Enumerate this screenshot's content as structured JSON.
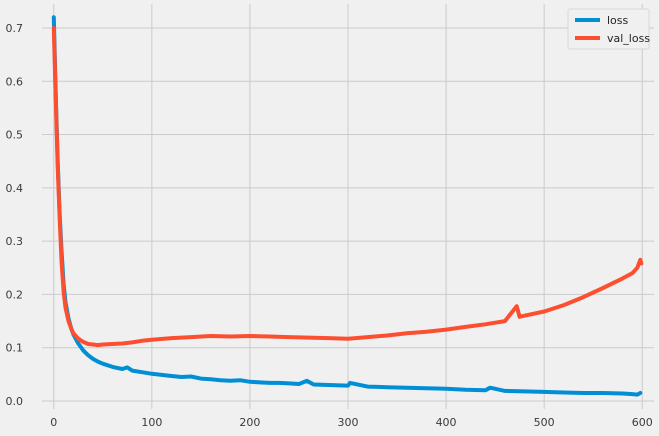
{
  "chart_data": {
    "type": "line",
    "title": "",
    "xlabel": "",
    "ylabel": "",
    "xlim": [
      -12,
      612
    ],
    "ylim": [
      -0.015,
      0.745
    ],
    "x_ticks": [
      0,
      100,
      200,
      300,
      400,
      500,
      600
    ],
    "y_ticks": [
      0.0,
      0.1,
      0.2,
      0.3,
      0.4,
      0.5,
      0.6,
      0.7
    ],
    "x_tick_labels": [
      "0",
      "100",
      "200",
      "300",
      "400",
      "500",
      "600"
    ],
    "y_tick_labels": [
      "0.0",
      "0.1",
      "0.2",
      "0.3",
      "0.4",
      "0.5",
      "0.6",
      "0.7"
    ],
    "grid": true,
    "legend_position": "top-right",
    "series": [
      {
        "name": "loss",
        "color": "#008fd5",
        "points": [
          [
            0,
            0.72
          ],
          [
            2,
            0.58
          ],
          [
            4,
            0.45
          ],
          [
            6,
            0.35
          ],
          [
            8,
            0.28
          ],
          [
            10,
            0.22
          ],
          [
            12,
            0.185
          ],
          [
            15,
            0.155
          ],
          [
            18,
            0.135
          ],
          [
            20,
            0.125
          ],
          [
            25,
            0.108
          ],
          [
            30,
            0.095
          ],
          [
            35,
            0.086
          ],
          [
            40,
            0.079
          ],
          [
            45,
            0.074
          ],
          [
            50,
            0.07
          ],
          [
            60,
            0.064
          ],
          [
            70,
            0.06
          ],
          [
            75,
            0.063
          ],
          [
            80,
            0.057
          ],
          [
            90,
            0.054
          ],
          [
            100,
            0.051
          ],
          [
            110,
            0.049
          ],
          [
            120,
            0.047
          ],
          [
            130,
            0.045
          ],
          [
            140,
            0.046
          ],
          [
            150,
            0.042
          ],
          [
            160,
            0.041
          ],
          [
            170,
            0.039
          ],
          [
            180,
            0.038
          ],
          [
            190,
            0.039
          ],
          [
            200,
            0.036
          ],
          [
            210,
            0.035
          ],
          [
            220,
            0.034
          ],
          [
            230,
            0.034
          ],
          [
            240,
            0.033
          ],
          [
            250,
            0.032
          ],
          [
            258,
            0.038
          ],
          [
            265,
            0.031
          ],
          [
            280,
            0.03
          ],
          [
            300,
            0.029
          ],
          [
            302,
            0.034
          ],
          [
            320,
            0.027
          ],
          [
            340,
            0.026
          ],
          [
            360,
            0.025
          ],
          [
            380,
            0.024
          ],
          [
            400,
            0.023
          ],
          [
            420,
            0.021
          ],
          [
            440,
            0.02
          ],
          [
            445,
            0.025
          ],
          [
            460,
            0.019
          ],
          [
            480,
            0.018
          ],
          [
            500,
            0.017
          ],
          [
            520,
            0.016
          ],
          [
            540,
            0.015
          ],
          [
            560,
            0.015
          ],
          [
            580,
            0.014
          ],
          [
            590,
            0.013
          ],
          [
            595,
            0.012
          ],
          [
            598,
            0.015
          ]
        ]
      },
      {
        "name": "val_loss",
        "color": "#fc4f30",
        "points": [
          [
            0,
            0.7
          ],
          [
            2,
            0.57
          ],
          [
            4,
            0.44
          ],
          [
            6,
            0.34
          ],
          [
            8,
            0.26
          ],
          [
            10,
            0.205
          ],
          [
            12,
            0.175
          ],
          [
            15,
            0.15
          ],
          [
            18,
            0.135
          ],
          [
            20,
            0.127
          ],
          [
            25,
            0.117
          ],
          [
            30,
            0.111
          ],
          [
            35,
            0.107
          ],
          [
            40,
            0.106
          ],
          [
            45,
            0.105
          ],
          [
            50,
            0.106
          ],
          [
            60,
            0.107
          ],
          [
            70,
            0.108
          ],
          [
            80,
            0.11
          ],
          [
            90,
            0.113
          ],
          [
            100,
            0.115
          ],
          [
            120,
            0.118
          ],
          [
            140,
            0.12
          ],
          [
            160,
            0.122
          ],
          [
            180,
            0.121
          ],
          [
            200,
            0.122
          ],
          [
            220,
            0.121
          ],
          [
            240,
            0.12
          ],
          [
            260,
            0.119
          ],
          [
            280,
            0.118
          ],
          [
            300,
            0.117
          ],
          [
            320,
            0.12
          ],
          [
            340,
            0.123
          ],
          [
            360,
            0.127
          ],
          [
            380,
            0.13
          ],
          [
            400,
            0.134
          ],
          [
            420,
            0.139
          ],
          [
            440,
            0.144
          ],
          [
            460,
            0.15
          ],
          [
            472,
            0.178
          ],
          [
            475,
            0.158
          ],
          [
            480,
            0.16
          ],
          [
            500,
            0.168
          ],
          [
            520,
            0.18
          ],
          [
            540,
            0.195
          ],
          [
            560,
            0.212
          ],
          [
            580,
            0.23
          ],
          [
            590,
            0.24
          ],
          [
            595,
            0.25
          ],
          [
            598,
            0.265
          ],
          [
            599,
            0.258
          ]
        ]
      }
    ]
  }
}
